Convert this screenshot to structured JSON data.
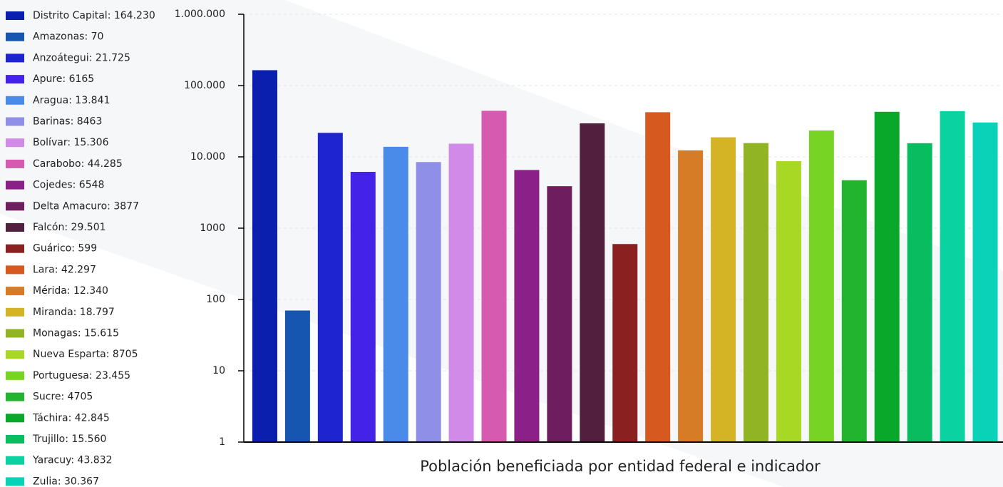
{
  "chart_data": {
    "type": "bar",
    "log": true,
    "grid": true,
    "xlabel": "Población beneficiada por entidad federal e indicador",
    "categories": [
      "Distrito Capital: 164.230",
      "Amazonas: 70",
      "Anzoátegui: 21.725",
      "Apure: 6165",
      "Aragua: 13.841",
      "Barinas: 8463",
      "Bolívar: 15.306",
      "Carabobo: 44.285",
      "Cojedes: 6548",
      "Delta Amacuro: 3877",
      "Falcón: 29.501",
      "Guárico: 599",
      "Lara: 42.297",
      "Mérida: 12.340",
      "Miranda: 18.797",
      "Monagas: 15.615",
      "Nueva Esparta: 8705",
      "Portuguesa: 23.455",
      "Sucre: 4705",
      "Táchira: 42.845",
      "Trujillo: 15.560",
      "Yaracuy: 43.832",
      "Zulia: 30.367"
    ],
    "values": [
      164230,
      70,
      21725,
      6165,
      13841,
      8463,
      15306,
      44285,
      6548,
      3877,
      29501,
      599,
      42297,
      12340,
      18797,
      15615,
      8705,
      23455,
      4705,
      42845,
      15560,
      43832,
      30367
    ],
    "colors": [
      "#0a1fae",
      "#1655b0",
      "#1e25d0",
      "#4422e8",
      "#4a8ae8",
      "#8f8fe8",
      "#d28ae8",
      "#d65ab0",
      "#8a2088",
      "#6e1e5e",
      "#52203e",
      "#8a2020",
      "#d65a20",
      "#d67c26",
      "#d4b424",
      "#90b424",
      "#a8d824",
      "#78d424",
      "#22b42e",
      "#0aa82a",
      "#0abc60",
      "#0ad2a0",
      "#0ad2b8"
    ],
    "ylim": [
      1,
      1000000
    ],
    "yticks": [
      1,
      10,
      100,
      1000,
      {
        "value": 10000,
        "label": "10.000"
      },
      {
        "value": 100000,
        "label": "100.000"
      },
      {
        "value": 1000000,
        "label": "1.000.000"
      }
    ]
  }
}
